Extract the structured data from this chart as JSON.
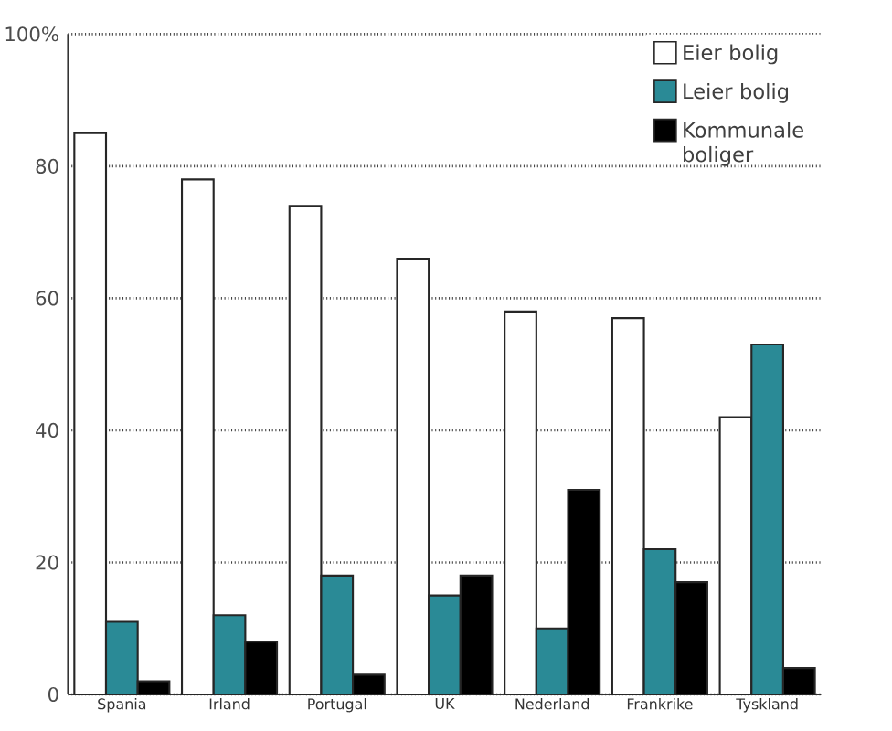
{
  "chart_data": {
    "type": "bar",
    "categories": [
      "Spania",
      "Irland",
      "Portugal",
      "UK",
      "Nederland",
      "Frankrike",
      "Tyskland"
    ],
    "series": [
      {
        "name": "Eier bolig",
        "color": "#ffffff",
        "values": [
          85,
          78,
          74,
          66,
          58,
          57,
          42
        ]
      },
      {
        "name": "Leier bolig",
        "color": "#2a8a96",
        "values": [
          11,
          12,
          18,
          15,
          10,
          22,
          53
        ]
      },
      {
        "name": "Kommunale boliger",
        "color": "#000000",
        "values": [
          2,
          8,
          3,
          18,
          31,
          17,
          4
        ]
      }
    ],
    "ylim": [
      0,
      100
    ],
    "yticks": [
      0,
      20,
      40,
      60,
      {
        "value": 100,
        "label": "100%"
      },
      80
    ],
    "grid": "y",
    "legend": "top right"
  }
}
